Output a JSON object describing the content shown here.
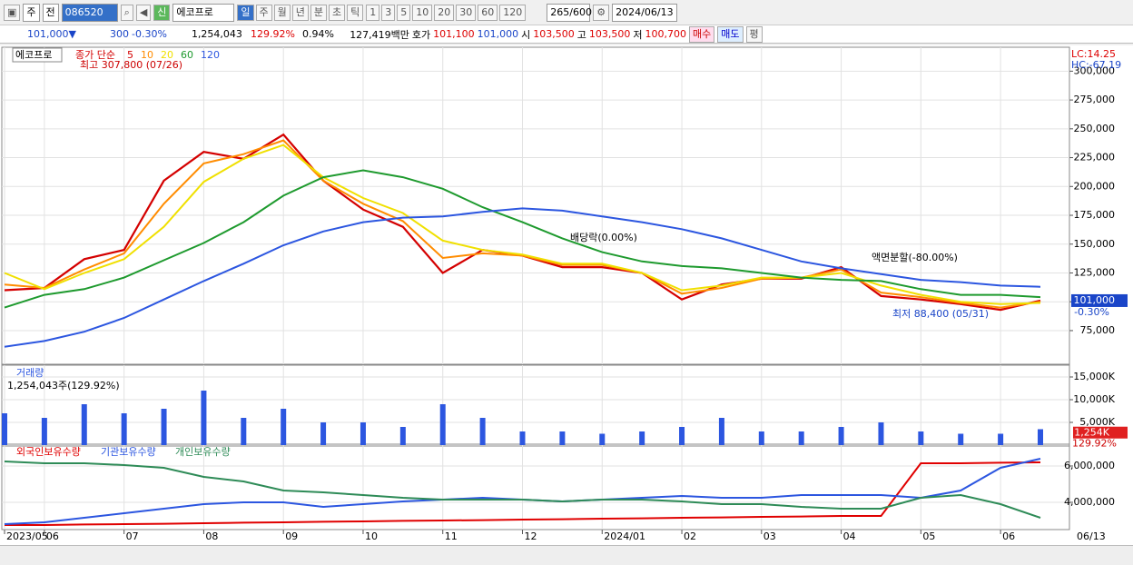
{
  "toolbar": {
    "type1": "주",
    "type2": "전",
    "code": "086520",
    "name": "에코프로",
    "badge": "신",
    "periods": [
      "일",
      "주",
      "월",
      "년",
      "분",
      "초",
      "틱"
    ],
    "intervals": [
      "1",
      "3",
      "5",
      "10",
      "20",
      "30",
      "60",
      "120"
    ],
    "count": "265/600",
    "date": "2024/06/13"
  },
  "info_bar": {
    "price": "101,000▼",
    "change": "300",
    "change_rate": "-0.30%",
    "volume": "1,254,043",
    "volume_rate": "129.92%",
    "turnover": "0.94%",
    "amount": "127,419백만",
    "bid_label": "호가",
    "bid": "101,100",
    "ask": "101,000",
    "open_label": "시",
    "open": "103,500",
    "high_label": "고",
    "high": "103,500",
    "low_label": "저",
    "low": "100,700",
    "buy": "매수",
    "sell": "매도",
    "avg": "평"
  },
  "chart_data": [
    {
      "type": "line",
      "name": "에코프로",
      "legend_title": "종가 단순",
      "categories": [
        "2023/05",
        "06",
        null,
        "07",
        null,
        "08",
        null,
        "09",
        null,
        "10",
        null,
        "11",
        null,
        "12",
        null,
        "2024/01",
        null,
        "02",
        null,
        "03",
        null,
        "04",
        null,
        "05",
        null,
        "06",
        null
      ],
      "current_date_label": "06/13",
      "series": [
        {
          "name": "5",
          "color": "#d40000",
          "values": [
            110000,
            112000,
            137000,
            145000,
            205000,
            230000,
            224000,
            245000,
            205000,
            180000,
            165000,
            125000,
            145000,
            140000,
            130000,
            130000,
            125000,
            102000,
            115000,
            120000,
            120000,
            130000,
            105000,
            102000,
            98000,
            93000,
            101000
          ]
        },
        {
          "name": "10",
          "color": "#ff8c00",
          "values": [
            115000,
            112000,
            128000,
            142000,
            185000,
            220000,
            228000,
            240000,
            205000,
            185000,
            170000,
            138000,
            142000,
            140000,
            132000,
            132000,
            125000,
            107000,
            112000,
            120000,
            121000,
            128000,
            108000,
            104000,
            99000,
            95000,
            100000
          ]
        },
        {
          "name": "20",
          "color": "#f0e000",
          "values": [
            125000,
            111000,
            125000,
            137000,
            165000,
            204000,
            224000,
            236000,
            208000,
            190000,
            177000,
            153000,
            145000,
            141000,
            133000,
            133000,
            125000,
            110000,
            114000,
            121000,
            121000,
            125000,
            114000,
            106000,
            100000,
            98000,
            99000
          ]
        },
        {
          "name": "60",
          "color": "#1e9a2e",
          "values": [
            95000,
            106000,
            111000,
            121000,
            136000,
            151000,
            169000,
            192000,
            208000,
            214000,
            208000,
            198000,
            182000,
            169000,
            155000,
            143000,
            135000,
            131000,
            129000,
            125000,
            121000,
            119000,
            118000,
            111000,
            106000,
            106000,
            104000
          ]
        },
        {
          "name": "120",
          "color": "#2c56e0",
          "values": [
            61000,
            66000,
            74000,
            86000,
            102000,
            118000,
            133000,
            149000,
            161000,
            169000,
            173000,
            174000,
            178000,
            181000,
            179000,
            174000,
            169000,
            163000,
            155000,
            145000,
            135000,
            129000,
            124000,
            119000,
            117000,
            114000,
            113000
          ]
        }
      ],
      "ylim": [
        46600,
        318400
      ],
      "yticks": [
        {
          "value": 75000,
          "label": "75,000"
        },
        {
          "value": 100000,
          "label": "100,000"
        },
        {
          "value": 125000,
          "label": "125,000"
        },
        {
          "value": 150000,
          "label": "150,000"
        },
        {
          "value": 175000,
          "label": "175,000"
        },
        {
          "value": 200000,
          "label": "200,000"
        },
        {
          "value": 225000,
          "label": "225,000"
        },
        {
          "value": 250000,
          "label": "250,000"
        },
        {
          "value": 275000,
          "label": "275,000"
        },
        {
          "value": 300000,
          "label": "300,000"
        }
      ],
      "grid": true,
      "current_price": {
        "value": 101000,
        "label": "101,000"
      },
      "change_label": "-0.30%",
      "lc_label": "LC:14.25",
      "hc_label": "HC:-67.19",
      "annotations": [
        "최고 307,800 (07/26)",
        "배당락(0.00%)",
        "액면분할(-80.00%)",
        "최저 88,400 (05/31)"
      ]
    },
    {
      "type": "bar",
      "title": "거래량",
      "info": "1,254,043주(129.92%)",
      "series": [
        {
          "name": "거래량",
          "color": "#2c56e0",
          "values": [
            7000000,
            6000000,
            9000000,
            7000000,
            8000000,
            12000000,
            6000000,
            8000000,
            5000000,
            5000000,
            4000000,
            9000000,
            6000000,
            3000000,
            3000000,
            2500000,
            3000000,
            4000000,
            6000000,
            3000000,
            3000000,
            4000000,
            5000000,
            3000000,
            2500000,
            2500000,
            3500000
          ]
        }
      ],
      "ylim": [
        0,
        17000000
      ],
      "yticks": [
        {
          "value": 5000000,
          "label": "5,000K"
        },
        {
          "value": 10000000,
          "label": "10,000K"
        },
        {
          "value": 15000000,
          "label": "15,000K"
        }
      ],
      "current_volume": {
        "value": 1254000,
        "label": "1,254K"
      },
      "ratio_label": "129.92%"
    },
    {
      "type": "line",
      "series": [
        {
          "name": "외국인보유수량",
          "color": "#e00000",
          "values": [
            2750000,
            2750000,
            2780000,
            2800000,
            2820000,
            2850000,
            2880000,
            2900000,
            2930000,
            2950000,
            2980000,
            3000000,
            3020000,
            3050000,
            3070000,
            3100000,
            3120000,
            3150000,
            3170000,
            3200000,
            3220000,
            3250000,
            3250000,
            6150000,
            6150000,
            6180000,
            6200000
          ]
        },
        {
          "name": "기관보유수량",
          "color": "#2c56e0",
          "values": [
            2800000,
            2900000,
            3150000,
            3400000,
            3650000,
            3900000,
            4000000,
            4000000,
            3750000,
            3900000,
            4050000,
            4150000,
            4250000,
            4150000,
            4050000,
            4150000,
            4250000,
            4350000,
            4250000,
            4250000,
            4400000,
            4400000,
            4400000,
            4250000,
            4650000,
            5900000,
            6400000
          ]
        },
        {
          "name": "개인보유수량",
          "color": "#2e8b57",
          "values": [
            6250000,
            6150000,
            6150000,
            6050000,
            5900000,
            5400000,
            5150000,
            4650000,
            4550000,
            4400000,
            4250000,
            4150000,
            4150000,
            4150000,
            4050000,
            4150000,
            4150000,
            4050000,
            3900000,
            3900000,
            3750000,
            3650000,
            3650000,
            4250000,
            4400000,
            3900000,
            3150000
          ]
        }
      ],
      "ylim": [
        2550000,
        7050000
      ],
      "yticks": [
        {
          "value": 4000000,
          "label": "4,000,000"
        },
        {
          "value": 6000000,
          "label": "6,000,000"
        }
      ]
    }
  ]
}
